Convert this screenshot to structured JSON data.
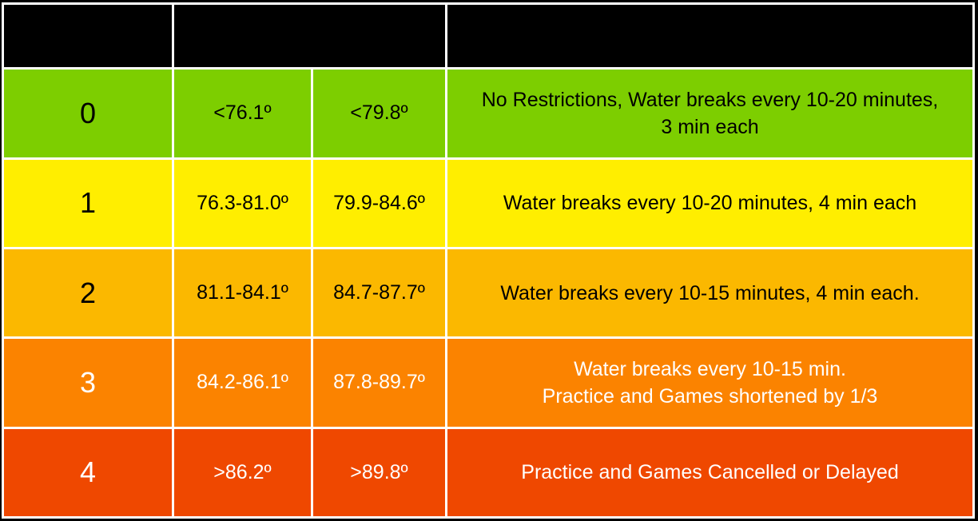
{
  "colors": {
    "header_bg": "#000000",
    "grid_lines": "#ffffff",
    "level_0": "#7dce00",
    "level_1": "#ffee00",
    "level_2": "#fbb800",
    "level_3": "#fb8300",
    "level_4": "#ef4800"
  },
  "header": {
    "level": "",
    "wbgt": "",
    "activity": ""
  },
  "rows": [
    {
      "level": "0",
      "range_a": "<76.1º",
      "range_b": "<79.8º",
      "action": "No Restrictions, Water breaks every 10-20 minutes, 3 min each"
    },
    {
      "level": "1",
      "range_a": "76.3-81.0º",
      "range_b": "79.9-84.6º",
      "action": "Water breaks every 10-20 minutes, 4 min each"
    },
    {
      "level": "2",
      "range_a": "81.1-84.1º",
      "range_b": "84.7-87.7º",
      "action": "Water breaks every 10-15 minutes, 4 min each."
    },
    {
      "level": "3",
      "range_a": "84.2-86.1º",
      "range_b": "87.8-89.7º",
      "action_line1": "Water breaks every 10-15 min.",
      "action_line2": "Practice and Games shortened by 1/3"
    },
    {
      "level": "4",
      "range_a": ">86.2º",
      "range_b": ">89.8º",
      "action": "Practice and Games Cancelled or Delayed"
    }
  ]
}
